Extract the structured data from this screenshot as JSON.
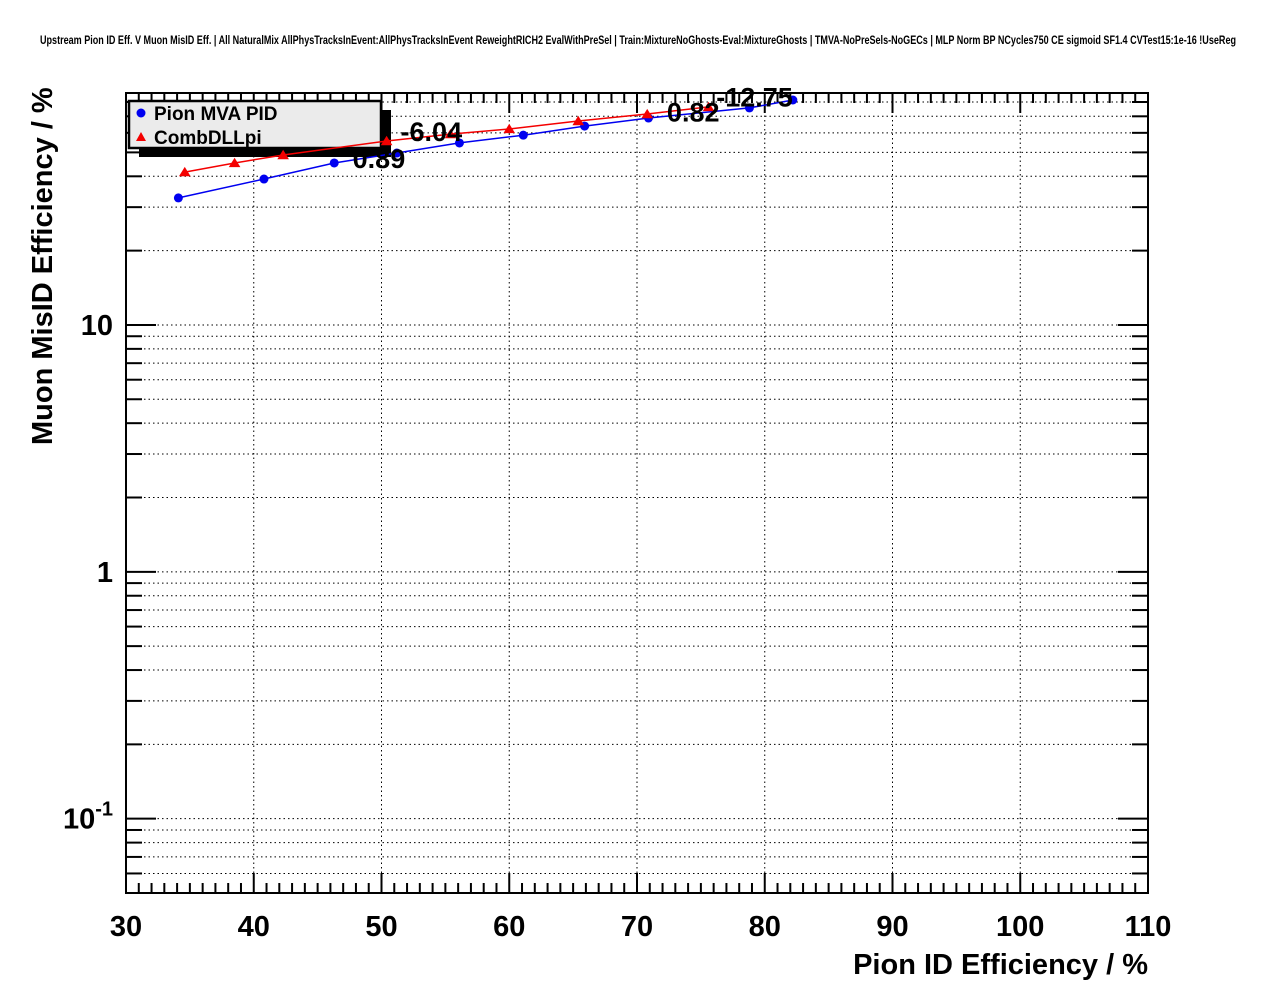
{
  "title": "Upstream Pion ID Eff. V Muon MisID Eff. | All NaturalMix AllPhysTracksInEvent:AllPhysTracksInEvent ReweightRICH2 EvalWithPreSel | Train:MixtureNoGhosts-Eval:MixtureGhosts | TMVA-NoPreSels-NoGECs | MLP Norm BP NCycles750 CE sigmoid SF1.4 CVTest15:1e-16 !UseReg",
  "chart_data": {
    "type": "line",
    "xlabel": "Pion ID Efficiency / %",
    "ylabel": "Muon MisID Efficiency / %",
    "xscale": "linear",
    "yscale": "log",
    "xlim": [
      30,
      110
    ],
    "ylim": [
      0.05,
      87
    ],
    "grid": "dotted",
    "x_major_ticks": [
      30,
      40,
      50,
      60,
      70,
      80,
      90,
      100,
      110
    ],
    "x_tick_labels": [
      "30",
      "40",
      "50",
      "60",
      "70",
      "80",
      "90",
      "100",
      "110"
    ],
    "y_decade_labels": [
      {
        "value": 10,
        "label": "10",
        "exponent": ""
      },
      {
        "value": 1,
        "label": "1",
        "exponent": ""
      },
      {
        "value": 0.1,
        "label": "10",
        "exponent": "-1"
      }
    ],
    "legend": {
      "position": "top-left",
      "items": [
        {
          "label": "Pion MVA PID",
          "marker": "circle",
          "color": "#0000f0"
        },
        {
          "label": "CombDLLpi",
          "marker": "triangle",
          "color": "#f40000"
        }
      ]
    },
    "series": [
      {
        "name": "Pion MVA PID",
        "marker": "circle",
        "color": "#0000f0",
        "points": [
          [
            34.1,
            32.7
          ],
          [
            40.8,
            39.0
          ],
          [
            46.3,
            45.3
          ],
          [
            51.2,
            49.7
          ],
          [
            56.1,
            54.6
          ],
          [
            61.1,
            58.7
          ],
          [
            65.9,
            63.9
          ],
          [
            70.9,
            68.9
          ],
          [
            78.8,
            75.7
          ],
          [
            82.2,
            81.5
          ]
        ]
      },
      {
        "name": "CombDLLpi",
        "marker": "triangle",
        "color": "#f40000",
        "points": [
          [
            34.6,
            41.6
          ],
          [
            38.5,
            45.3
          ],
          [
            42.3,
            48.8
          ],
          [
            50.4,
            55.6
          ],
          [
            55.4,
            59.3
          ],
          [
            60.0,
            62.2
          ],
          [
            65.4,
            67.0
          ],
          [
            70.8,
            71.5
          ],
          [
            75.6,
            76.4
          ]
        ]
      }
    ],
    "annotations": [
      {
        "text": "0.89",
        "color": "#0000f0",
        "x": 49.8,
        "y": 47.0
      },
      {
        "text": "-6.04",
        "color": "#f40000",
        "x": 53.9,
        "y": 60.5
      },
      {
        "text": "0.82",
        "color": "#0000f0",
        "x": 74.4,
        "y": 72.5
      },
      {
        "text": "-12.75",
        "color": "#f40000",
        "x": 79.2,
        "y": 83.5
      }
    ]
  }
}
